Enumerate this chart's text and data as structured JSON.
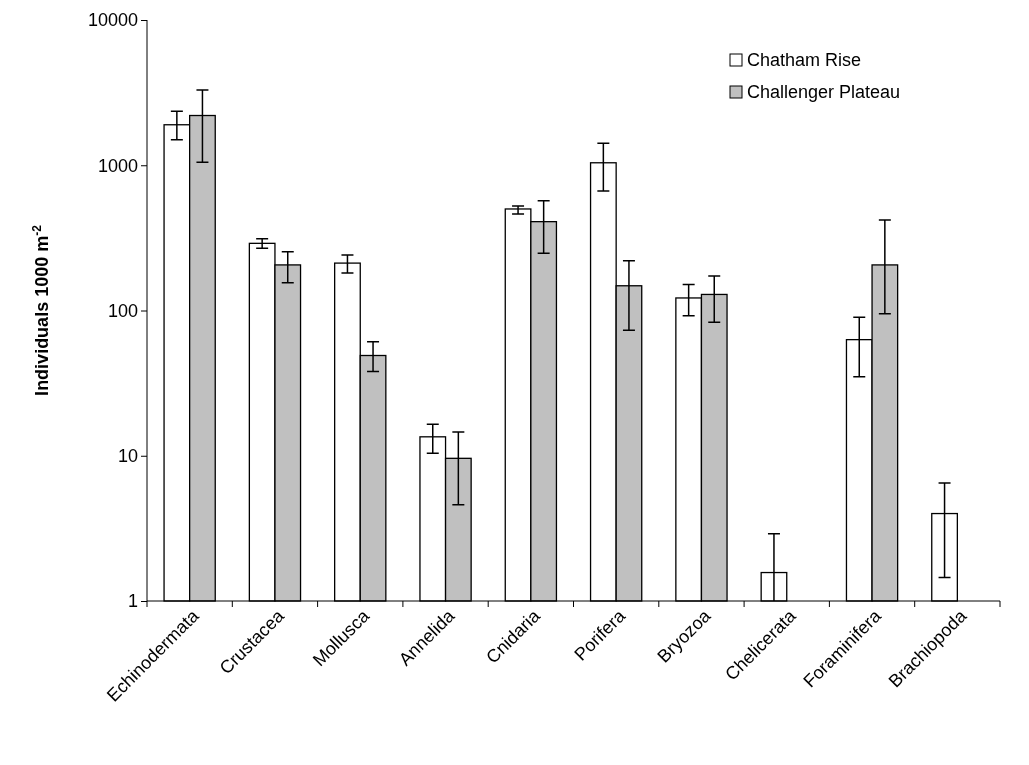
{
  "chart_data": {
    "type": "bar",
    "ylabel": "Individuals 1000 m$^{-2}$",
    "log": true,
    "ylim": [
      1,
      10000
    ],
    "yticks": [
      1,
      10,
      100,
      1000,
      10000
    ],
    "legend": "top right",
    "categories": [
      "Echinodermata",
      "Crustacea",
      "Mollusca",
      "Annelida",
      "Cnidaria",
      "Porifera",
      "Bryozoa",
      "Chelicerata",
      "Foraminifera",
      "Brachiopoda"
    ],
    "series": [
      {
        "name": "Chatham Rise",
        "color": "#ffffff",
        "values": [
          1900,
          290,
          212,
          13.5,
          500,
          1040,
          122,
          1.57,
          63,
          4.0
        ],
        "errors": [
          [
            1500,
            2350
          ],
          [
            268,
            312
          ],
          [
            181,
            241
          ],
          [
            10.4,
            16.5
          ],
          [
            461,
            524
          ],
          [
            665,
            1420
          ],
          [
            92,
            151
          ],
          [
            1,
            2.9
          ],
          [
            35,
            90
          ],
          [
            1.45,
            6.5
          ]
        ]
      },
      {
        "name": "Challenger Plateau",
        "color": "#c0c0c0",
        "values": [
          2200,
          206,
          49,
          9.6,
          409,
          148,
          129,
          null,
          206,
          null
        ],
        "errors": [
          [
            1050,
            3300
          ],
          [
            155,
            254
          ],
          [
            38,
            61
          ],
          [
            4.6,
            14.6
          ],
          [
            248,
            570
          ],
          [
            73,
            220
          ],
          [
            83,
            173
          ],
          null,
          [
            95,
            420
          ],
          null
        ]
      }
    ]
  }
}
